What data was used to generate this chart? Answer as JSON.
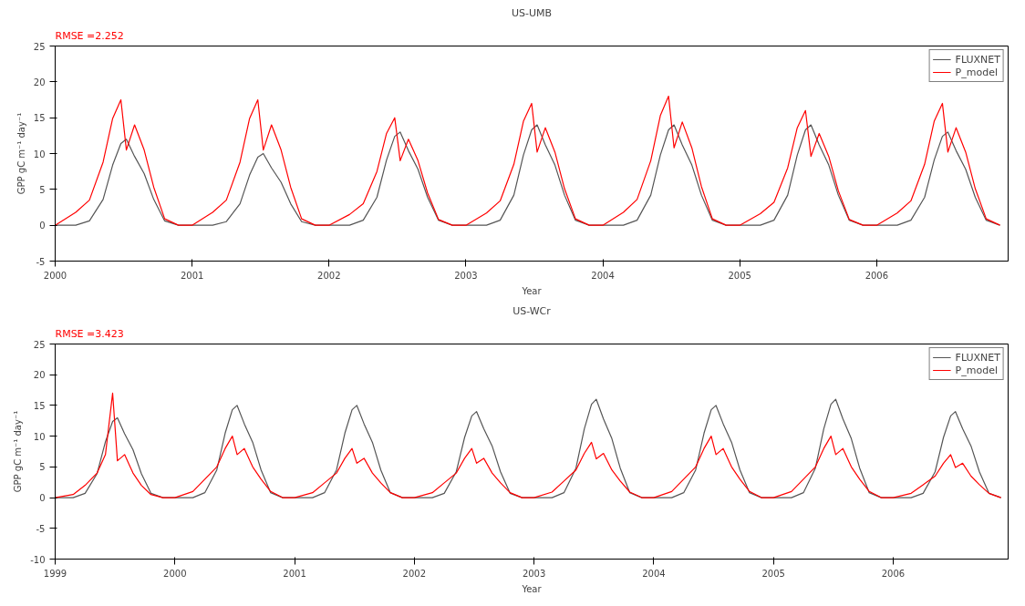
{
  "chart_data": [
    {
      "type": "line",
      "title": "US-UMB",
      "xlabel": "Year",
      "ylabel": "GPP gC m⁻¹ day⁻¹",
      "annotations": [
        "RMSE =2.252"
      ],
      "x": [
        2000,
        2000.15,
        2000.25,
        2000.35,
        2000.42,
        2000.48,
        2000.52,
        2000.58,
        2000.65,
        2000.72,
        2000.8,
        2000.9,
        2001,
        2001.15,
        2001.25,
        2001.35,
        2001.42,
        2001.48,
        2001.52,
        2001.58,
        2001.65,
        2001.72,
        2001.8,
        2001.9,
        2002,
        2002.15,
        2002.25,
        2002.35,
        2002.42,
        2002.48,
        2002.52,
        2002.58,
        2002.65,
        2002.72,
        2002.8,
        2002.9,
        2003,
        2003.15,
        2003.25,
        2003.35,
        2003.42,
        2003.48,
        2003.52,
        2003.58,
        2003.65,
        2003.72,
        2003.8,
        2003.9,
        2004,
        2004.15,
        2004.25,
        2004.35,
        2004.42,
        2004.48,
        2004.52,
        2004.58,
        2004.65,
        2004.72,
        2004.8,
        2004.9,
        2005,
        2005.15,
        2005.25,
        2005.35,
        2005.42,
        2005.48,
        2005.52,
        2005.58,
        2005.65,
        2005.72,
        2005.8,
        2005.9,
        2006,
        2006.15,
        2006.25,
        2006.35,
        2006.42,
        2006.48,
        2006.52,
        2006.58,
        2006.65,
        2006.72,
        2006.8,
        2006.9
      ],
      "series": [
        {
          "name": "FLUXNET",
          "color": "#555555",
          "values": [
            0,
            0,
            0.6,
            3.6,
            8.4,
            11.4,
            12,
            9.6,
            7.2,
            3.6,
            0.6,
            0,
            0,
            0,
            0.5,
            3,
            7,
            9.5,
            10,
            8,
            6,
            3,
            0.5,
            0,
            0,
            0,
            0.7,
            3.9,
            9.1,
            12.4,
            13,
            10.4,
            7.8,
            3.9,
            0.7,
            0,
            0,
            0,
            0.7,
            4.2,
            9.8,
            13.3,
            14,
            11.2,
            8.4,
            4.2,
            0.7,
            0,
            0,
            0,
            0.7,
            4.2,
            9.8,
            13.3,
            14,
            11.2,
            8.4,
            4.2,
            0.7,
            0,
            0,
            0,
            0.7,
            4.2,
            9.8,
            13.3,
            14,
            11.2,
            8.4,
            4.2,
            0.7,
            0,
            0,
            0,
            0.7,
            3.9,
            9.1,
            12.4,
            13,
            10.4,
            7.8,
            3.9,
            0.7,
            0
          ]
        },
        {
          "name": "P_model",
          "color": "#ff0000",
          "values": [
            0,
            1.8,
            3.5,
            8.8,
            14.9,
            17.5,
            10.5,
            14,
            10.5,
            5.3,
            0.9,
            0,
            0,
            1.8,
            3.5,
            8.8,
            14.9,
            17.5,
            10.5,
            14,
            10.5,
            5.3,
            0.9,
            0,
            0,
            1.5,
            3,
            7.5,
            12.8,
            15,
            9,
            12,
            9,
            4.5,
            0.8,
            0,
            0,
            1.7,
            3.4,
            8.5,
            14.5,
            17,
            10.2,
            13.6,
            10.2,
            5.1,
            0.9,
            0,
            0,
            1.8,
            3.6,
            9,
            15.3,
            18,
            10.8,
            14.4,
            10.8,
            5.4,
            0.9,
            0,
            0,
            1.6,
            3.2,
            8,
            13.6,
            16,
            9.6,
            12.8,
            9.6,
            4.8,
            0.8,
            0,
            0,
            1.7,
            3.4,
            8.5,
            14.5,
            17,
            10.2,
            13.6,
            10.2,
            5.1,
            0.9,
            0
          ]
        }
      ],
      "xlim": [
        2000,
        2006.96
      ],
      "xticks": [
        2000,
        2001,
        2002,
        2003,
        2004,
        2005,
        2006
      ],
      "ylim": [
        -5,
        25
      ],
      "yticks": [
        -5,
        0,
        5,
        10,
        15,
        20,
        25
      ],
      "legend": "top right"
    },
    {
      "type": "line",
      "title": "US-WCr",
      "xlabel": "Year",
      "ylabel": "GPP gC m⁻¹ day⁻¹",
      "annotations": [
        "RMSE =3.423"
      ],
      "x": [
        1999,
        1999.15,
        1999.25,
        1999.35,
        1999.42,
        1999.48,
        1999.52,
        1999.58,
        1999.65,
        1999.72,
        1999.8,
        1999.9,
        2000,
        2000.15,
        2000.25,
        2000.35,
        2000.42,
        2000.48,
        2000.52,
        2000.58,
        2000.65,
        2000.72,
        2000.8,
        2000.9,
        2001,
        2001.15,
        2001.25,
        2001.35,
        2001.42,
        2001.48,
        2001.52,
        2001.58,
        2001.65,
        2001.72,
        2001.8,
        2001.9,
        2002,
        2002.15,
        2002.25,
        2002.35,
        2002.42,
        2002.48,
        2002.52,
        2002.58,
        2002.65,
        2002.72,
        2002.8,
        2002.9,
        2003,
        2003.15,
        2003.25,
        2003.35,
        2003.42,
        2003.48,
        2003.52,
        2003.58,
        2003.65,
        2003.72,
        2003.8,
        2003.9,
        2004,
        2004.15,
        2004.25,
        2004.35,
        2004.42,
        2004.48,
        2004.52,
        2004.58,
        2004.65,
        2004.72,
        2004.8,
        2004.9,
        2005,
        2005.15,
        2005.25,
        2005.35,
        2005.42,
        2005.48,
        2005.52,
        2005.58,
        2005.65,
        2005.72,
        2005.8,
        2005.9,
        2006,
        2006.15,
        2006.25,
        2006.35,
        2006.42,
        2006.48,
        2006.52,
        2006.58,
        2006.65,
        2006.72,
        2006.8,
        2006.9
      ],
      "series": [
        {
          "name": "FLUXNET",
          "color": "#555555",
          "values": [
            0,
            0,
            0.7,
            3.9,
            9.1,
            12.4,
            13,
            10.4,
            7.8,
            3.9,
            0.7,
            0,
            0,
            0,
            0.8,
            4.5,
            10.5,
            14.3,
            15,
            12,
            9,
            4.5,
            0.8,
            0,
            0,
            0,
            0.8,
            4.5,
            10.5,
            14.3,
            15,
            12,
            9,
            4.5,
            0.8,
            0,
            0,
            0,
            0.7,
            4.2,
            9.8,
            13.3,
            14,
            11.2,
            8.4,
            4.2,
            0.7,
            0,
            0,
            0,
            0.8,
            4.8,
            11.2,
            15.2,
            16,
            12.8,
            9.6,
            4.8,
            0.8,
            0,
            0,
            0,
            0.8,
            4.5,
            10.5,
            14.3,
            15,
            12,
            9,
            4.5,
            0.8,
            0,
            0,
            0,
            0.8,
            4.8,
            11.2,
            15.2,
            16,
            12.8,
            9.6,
            4.8,
            0.8,
            0,
            0,
            0,
            0.7,
            4.2,
            9.8,
            13.3,
            14,
            11.2,
            8.4,
            4.2,
            0.7,
            0
          ]
        },
        {
          "name": "P_model",
          "color": "#ff0000",
          "values": [
            0,
            0.5,
            2,
            4,
            7,
            17,
            6,
            7,
            4,
            2,
            0.5,
            0,
            0,
            1,
            3,
            5,
            8,
            10,
            7,
            8,
            5,
            3,
            1,
            0,
            0,
            0.8,
            2.4,
            4,
            6.4,
            8,
            5.6,
            6.4,
            4,
            2.4,
            0.8,
            0,
            0,
            0.8,
            2.4,
            4,
            6.4,
            8,
            5.6,
            6.4,
            4,
            2.4,
            0.8,
            0,
            0,
            0.9,
            2.7,
            4.5,
            7.2,
            9,
            6.3,
            7.2,
            4.5,
            2.7,
            0.9,
            0,
            0,
            1,
            3,
            5,
            8,
            10,
            7,
            8,
            5,
            3,
            1,
            0,
            0,
            1,
            3,
            5,
            8,
            10,
            7,
            8,
            5,
            3,
            1,
            0,
            0,
            0.7,
            2.1,
            3.5,
            5.6,
            7,
            4.9,
            5.6,
            3.5,
            2.1,
            0.7,
            0
          ]
        }
      ],
      "xlim": [
        1999,
        2006.96
      ],
      "xticks": [
        1999,
        2000,
        2001,
        2002,
        2003,
        2004,
        2005,
        2006
      ],
      "ylim": [
        -10,
        25
      ],
      "yticks": [
        -10,
        -5,
        0,
        5,
        10,
        15,
        20,
        25
      ],
      "legend": "top right"
    }
  ]
}
